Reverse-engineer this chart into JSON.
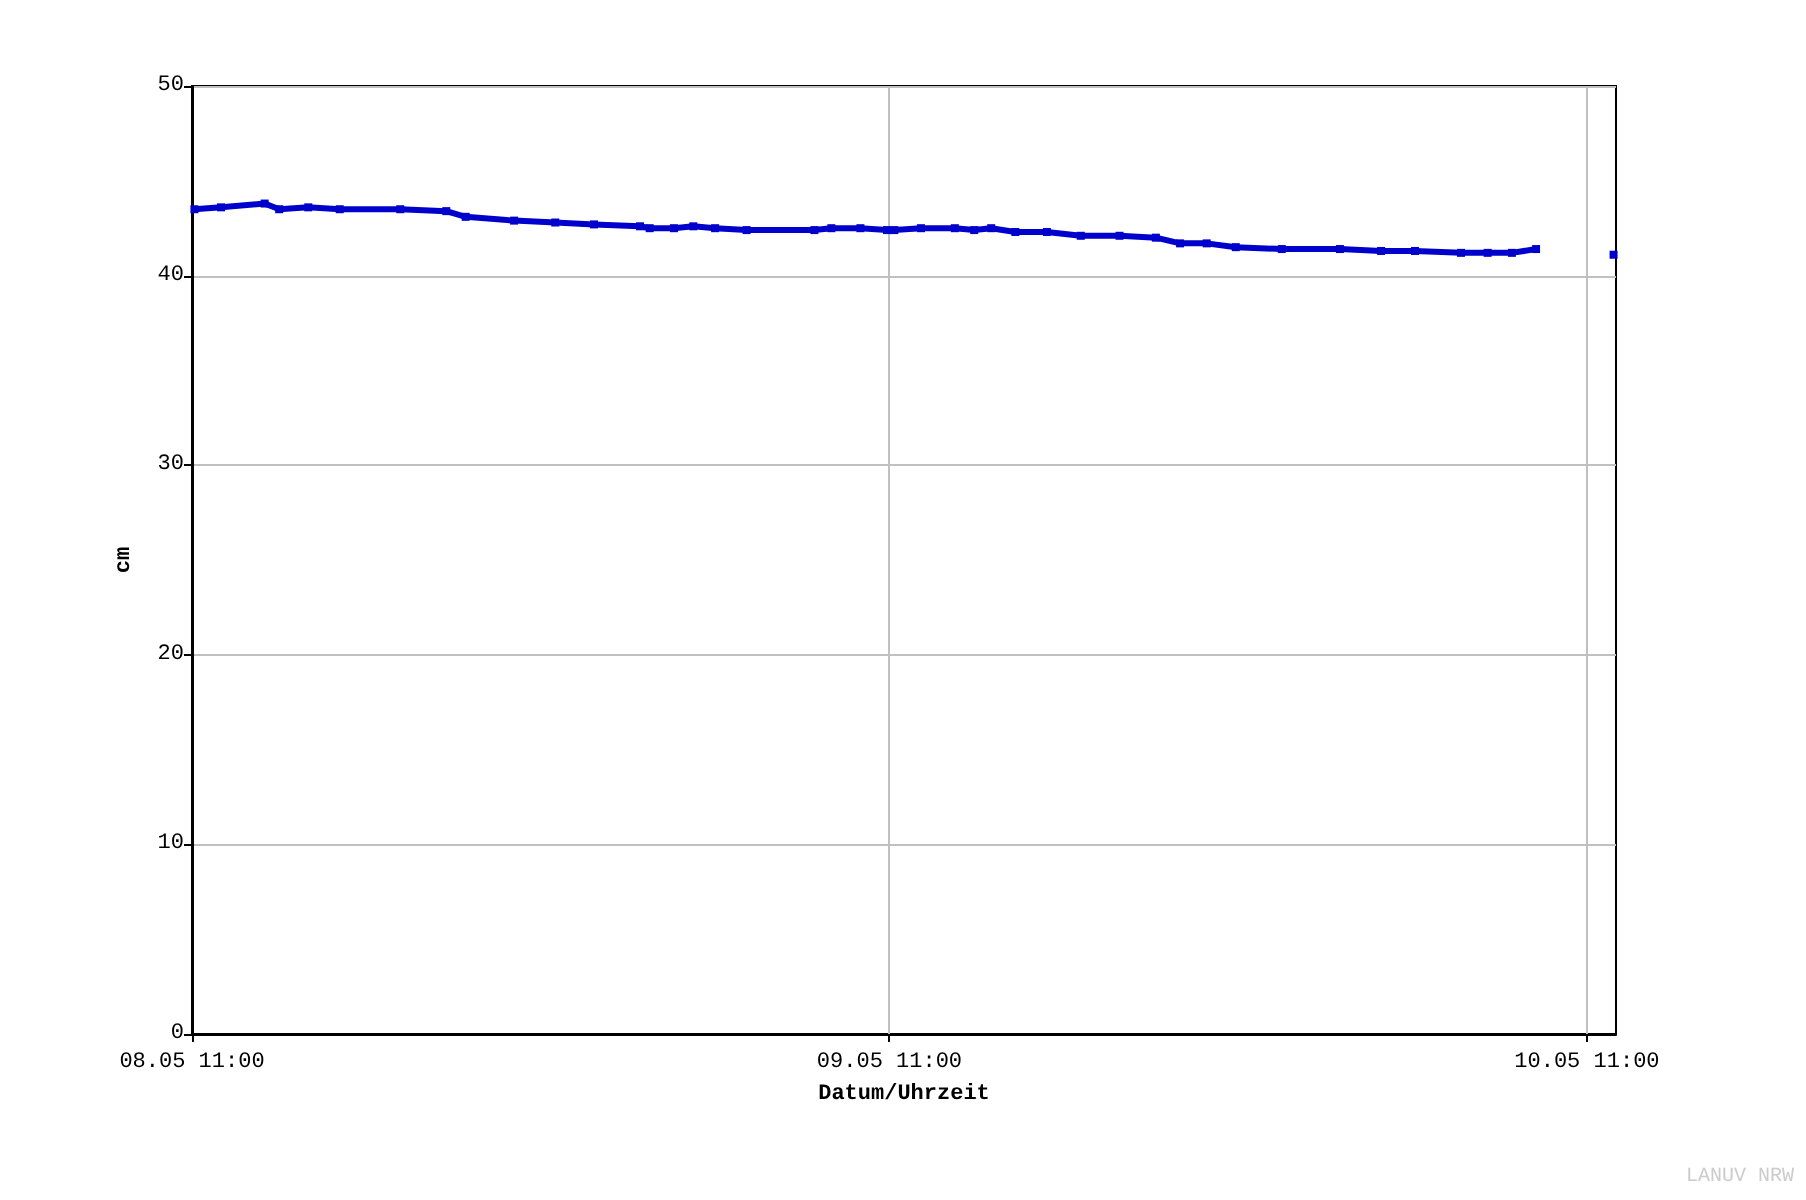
{
  "chart_data": {
    "type": "line",
    "xlabel": "Datum/Uhrzeit",
    "ylabel": "cm",
    "annotations": [
      "LANUV NRW"
    ],
    "x": [
      "--05-08T11:05",
      "--05-08T12:00",
      "--05-08T13:30",
      "--05-08T14:00",
      "--05-08T15:00",
      "--05-08T16:05",
      "--05-08T18:10",
      "--05-08T19:45",
      "--05-08T20:25",
      "--05-08T22:05",
      "--05-08T23:30",
      "--05-09T00:50",
      "--05-09T02:25",
      "--05-09T02:45",
      "--05-09T03:35",
      "--05-09T04:15",
      "--05-09T05:00",
      "--05-09T06:05",
      "--05-09T08:25",
      "--05-09T09:00",
      "--05-09T10:00",
      "--05-09T10:55",
      "--05-09T11:10",
      "--05-09T12:05",
      "--05-09T13:15",
      "--05-09T13:55",
      "--05-09T14:30",
      "--05-09T15:20",
      "--05-09T16:25",
      "--05-09T17:35",
      "--05-09T18:55",
      "--05-09T20:10",
      "--05-09T21:00",
      "--05-09T21:55",
      "--05-09T22:55",
      "--05-10T00:30",
      "--05-10T02:30",
      "--05-10T03:55",
      "--05-10T05:05",
      "--05-10T06:40",
      "--05-10T07:35",
      "--05-10T08:25",
      "--05-10T09:15",
      "--05-10T10:30",
      "--05-10T11:55"
    ],
    "series": [
      {
        "color": "#0000cc",
        "values": [
          43.5,
          43.6,
          43.8,
          43.5,
          43.6,
          43.5,
          43.5,
          43.4,
          43.1,
          42.9,
          42.8,
          42.7,
          42.6,
          42.5,
          42.5,
          42.6,
          42.5,
          42.4,
          42.4,
          42.5,
          42.5,
          42.4,
          42.4,
          42.5,
          42.5,
          42.4,
          42.5,
          42.3,
          42.3,
          42.1,
          42.1,
          42.0,
          41.7,
          41.7,
          41.5,
          41.4,
          41.4,
          41.3,
          41.3,
          41.2,
          41.2,
          41.2,
          41.4,
          null,
          41.1
        ]
      }
    ],
    "xlim": [
      "--05-08T11:00",
      "--05-10T12:00"
    ],
    "xticks": [
      {
        "value": "--05-08T11:00",
        "label": "08.05 11:00"
      },
      {
        "value": "--05-09T11:00",
        "label": "09.05 11:00"
      },
      {
        "value": "--05-10T11:00",
        "label": "10.05 11:00"
      }
    ],
    "ylim": [
      0,
      50
    ],
    "yticks": [
      0,
      10,
      20,
      30,
      40,
      50
    ],
    "grid": true,
    "marker": "square",
    "line_style": "solid"
  }
}
